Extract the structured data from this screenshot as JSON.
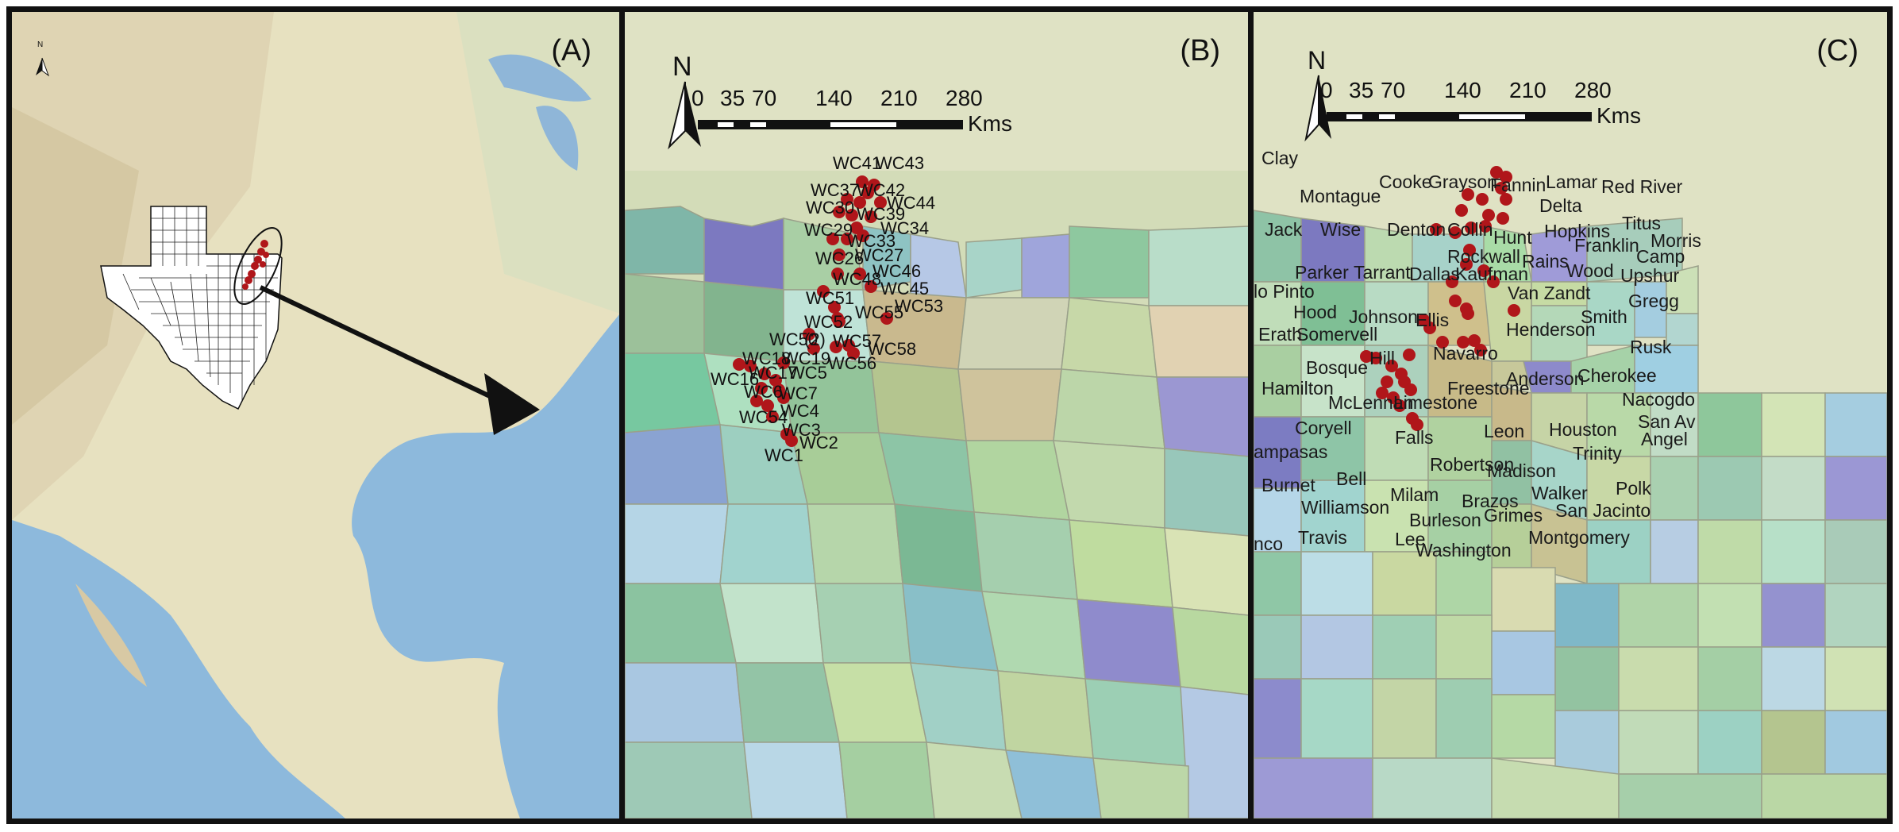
{
  "panels": {
    "a": {
      "label": "(A)",
      "north": "N"
    },
    "b": {
      "label": "(B)",
      "north": "N",
      "scale": {
        "ticks": [
          "0",
          "35",
          "70",
          "140",
          "210",
          "280"
        ],
        "unit": "Kms"
      },
      "sites": [
        "WC41",
        "WC43",
        "WC37",
        "WC42",
        "WC30",
        "WC44",
        "WC39",
        "WC29",
        "WC33",
        "WC34",
        "WC27",
        "WC26",
        "WC48",
        "WC46",
        "WC45",
        "WC51",
        "WC55",
        "WC53",
        "WC52",
        "WC50",
        "(2)",
        "WC57",
        "WC58",
        "WC56",
        "WC18",
        "WC19",
        "WC16",
        "WC17",
        "WC5",
        "WC6",
        "WC7",
        "WC4",
        "WC54",
        "WC3",
        "WC2",
        "WC1"
      ]
    },
    "c": {
      "label": "(C)",
      "north": "N",
      "scale": {
        "ticks": [
          "0",
          "35",
          "70",
          "140",
          "210",
          "280"
        ],
        "unit": "Kms"
      },
      "counties": [
        "Clay",
        "Montague",
        "Cooke",
        "Grayson",
        "Fannin",
        "Lamar",
        "Red River",
        "Delta",
        "Jack",
        "Wise",
        "Denton",
        "Collin",
        "Hunt",
        "Hopkins",
        "Titus",
        "Morris",
        "Franklin",
        "Camp",
        "Rockwall",
        "Rains",
        "Wood",
        "Upshur",
        "Parker",
        "Tarrant",
        "Dallas",
        "Kaufman",
        "Van Zandt",
        "Gregg",
        "lo Pinto",
        "Hood",
        "Johnson",
        "Ellis",
        "Smith",
        "Erath",
        "Somervell",
        "Henderson",
        "Rusk",
        "Hill",
        "Navarro",
        "Bosque",
        "Hamilton",
        "Freestone",
        "Anderson",
        "Cherokee",
        "McLennan",
        "Limestone",
        "Nacogdo",
        "Coryell",
        "Leon",
        "Houston",
        "San Av",
        "Angel",
        "Falls",
        "ampasas",
        "Bell",
        "Robertson",
        "Madison",
        "Trinity",
        "Burnet",
        "Milam",
        "Walker",
        "Polk",
        "Williamson",
        "Brazos",
        "San Jacinto",
        "Grimes",
        "Burleson",
        "Travis",
        "Lee",
        "Washington",
        "Montgomery",
        "nco"
      ]
    }
  }
}
